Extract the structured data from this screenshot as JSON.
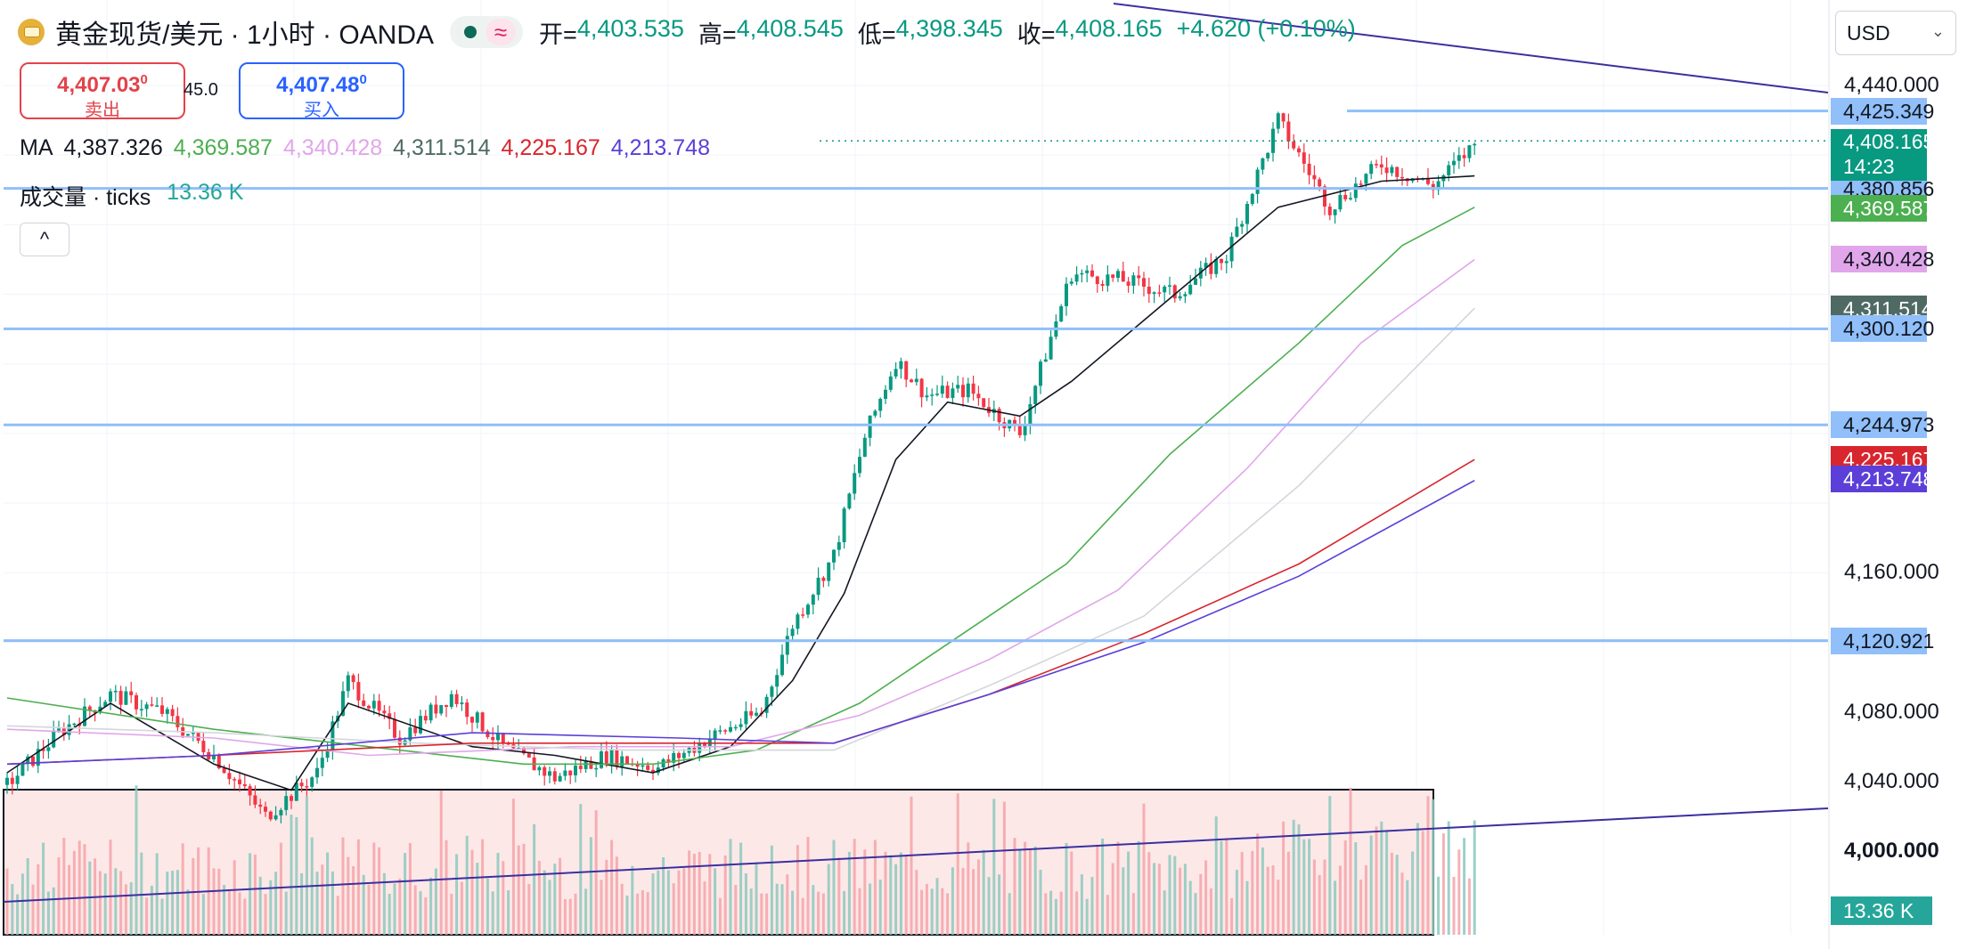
{
  "header": {
    "symbol_title": "黄金现货/美元 · 1小时 · OANDA",
    "status_icon": "market-status-dot",
    "wave_icon": "≈",
    "open_label": "开=",
    "open": "4,403.535",
    "high_label": "高=",
    "high": "4,408.545",
    "low_label": "低=",
    "low": "4,398.345",
    "close_label": "收=",
    "close": "4,408.165",
    "change": "+4.620 (+0.10%)"
  },
  "trade": {
    "sell_price": "4,407.03",
    "sell_sup": "0",
    "sell_label": "卖出",
    "spread": "45.0",
    "buy_price": "4,407.48",
    "buy_sup": "0",
    "buy_label": "买入"
  },
  "indicators": {
    "ma_label": "MA",
    "ma_values": [
      {
        "value": "4,387.326",
        "color": "#131722"
      },
      {
        "value": "4,369.587",
        "color": "#4caf50"
      },
      {
        "value": "4,340.428",
        "color": "#e1a6ea"
      },
      {
        "value": "4,311.514",
        "color": "#4f6a63"
      },
      {
        "value": "4,225.167",
        "color": "#d8262e"
      },
      {
        "value": "4,213.748",
        "color": "#5b3fd8"
      }
    ],
    "volume_label": "成交量 · ticks",
    "volume_value": "13.36 K",
    "collapse_icon": "^"
  },
  "currency": "USD",
  "colors": {
    "up": "#089981",
    "down": "#f23645",
    "hline": "#90bff9",
    "trendline": "#3b2fa0",
    "rect_fill": "#fde8e8"
  },
  "chart_data": {
    "type": "candlestick",
    "timeframe": "1小时",
    "ylim": [
      3980,
      4452
    ],
    "y_ticks": [
      "4,440.000",
      "4,160.000",
      "4,120.000",
      "4,080.000",
      "4,040.000",
      "4,000.000"
    ],
    "price_labels": [
      {
        "value": "4,425.349",
        "y": 4425.349,
        "style": "light"
      },
      {
        "value": "4,387.326",
        "y": 4387.326,
        "style": "dark",
        "color": "#000000"
      },
      {
        "value": "4,380.856",
        "y": 4380.856,
        "style": "light"
      },
      {
        "value": "4,369.587",
        "y": 4369.587,
        "style": "dark",
        "color": "#4caf50"
      },
      {
        "value": "4,340.428",
        "y": 4340.428,
        "style": "color",
        "color": "#e1a6ea"
      },
      {
        "value": "4,311.514",
        "y": 4311.514,
        "style": "dark",
        "color": "#4f6a63"
      },
      {
        "value": "4,300.120",
        "y": 4300.12,
        "style": "light"
      },
      {
        "value": "4,244.973",
        "y": 4244.973,
        "style": "light"
      },
      {
        "value": "4,225.167",
        "y": 4225.167,
        "style": "dark",
        "color": "#d8262e"
      },
      {
        "value": "4,213.748",
        "y": 4213.748,
        "style": "dark",
        "color": "#5b3fd8"
      },
      {
        "value": "4,120.921",
        "y": 4120.921,
        "style": "light"
      }
    ],
    "last_price": {
      "value": "4,408.165",
      "countdown": "14:23",
      "y": 4408.165
    },
    "volume_label": "13.36 K",
    "horizontal_lines": [
      4425.349,
      4380.856,
      4300.12,
      4244.973,
      4120.921
    ],
    "anchors": [
      [
        0,
        4038
      ],
      [
        10,
        4068
      ],
      [
        20,
        4090
      ],
      [
        30,
        4080
      ],
      [
        40,
        4055
      ],
      [
        50,
        4020
      ],
      [
        60,
        4045
      ],
      [
        66,
        4098
      ],
      [
        76,
        4065
      ],
      [
        86,
        4090
      ],
      [
        96,
        4060
      ],
      [
        106,
        4042
      ],
      [
        116,
        4055
      ],
      [
        126,
        4048
      ],
      [
        136,
        4065
      ],
      [
        146,
        4080
      ],
      [
        152,
        4130
      ],
      [
        160,
        4170
      ],
      [
        166,
        4238
      ],
      [
        172,
        4282
      ],
      [
        178,
        4262
      ],
      [
        186,
        4265
      ],
      [
        196,
        4240
      ],
      [
        206,
        4332
      ],
      [
        216,
        4328
      ],
      [
        226,
        4320
      ],
      [
        236,
        4342
      ],
      [
        246,
        4420
      ],
      [
        256,
        4370
      ],
      [
        266,
        4395
      ],
      [
        276,
        4382
      ],
      [
        284,
        4406
      ]
    ],
    "ma_series": [
      {
        "color": "#131722",
        "points": [
          [
            0,
            4045
          ],
          [
            20,
            4085
          ],
          [
            40,
            4050
          ],
          [
            55,
            4035
          ],
          [
            66,
            4085
          ],
          [
            90,
            4060
          ],
          [
            106,
            4055
          ],
          [
            125,
            4045
          ],
          [
            140,
            4060
          ],
          [
            152,
            4098
          ],
          [
            162,
            4148
          ],
          [
            172,
            4225
          ],
          [
            182,
            4258
          ],
          [
            196,
            4250
          ],
          [
            206,
            4270
          ],
          [
            226,
            4320
          ],
          [
            246,
            4370
          ],
          [
            266,
            4385
          ],
          [
            284,
            4388
          ]
        ]
      },
      {
        "color": "#4caf50",
        "points": [
          [
            0,
            4088
          ],
          [
            40,
            4070
          ],
          [
            70,
            4060
          ],
          [
            100,
            4050
          ],
          [
            125,
            4050
          ],
          [
            145,
            4058
          ],
          [
            165,
            4085
          ],
          [
            185,
            4125
          ],
          [
            205,
            4165
          ],
          [
            225,
            4228
          ],
          [
            250,
            4292
          ],
          [
            270,
            4348
          ],
          [
            284,
            4370
          ]
        ]
      },
      {
        "color": "#e1a6ea",
        "points": [
          [
            0,
            4070
          ],
          [
            40,
            4065
          ],
          [
            70,
            4055
          ],
          [
            110,
            4060
          ],
          [
            140,
            4060
          ],
          [
            165,
            4078
          ],
          [
            190,
            4110
          ],
          [
            215,
            4150
          ],
          [
            240,
            4220
          ],
          [
            262,
            4292
          ],
          [
            284,
            4340
          ]
        ]
      },
      {
        "color": "#d4d6db",
        "points": [
          [
            0,
            4072
          ],
          [
            40,
            4068
          ],
          [
            80,
            4062
          ],
          [
            120,
            4058
          ],
          [
            160,
            4058
          ],
          [
            190,
            4095
          ],
          [
            220,
            4135
          ],
          [
            250,
            4210
          ],
          [
            284,
            4312
          ]
        ]
      },
      {
        "color": "#d8262e",
        "points": [
          [
            0,
            4050
          ],
          [
            40,
            4055
          ],
          [
            90,
            4062
          ],
          [
            130,
            4062
          ],
          [
            160,
            4062
          ],
          [
            190,
            4090
          ],
          [
            220,
            4125
          ],
          [
            250,
            4165
          ],
          [
            284,
            4225
          ]
        ]
      },
      {
        "color": "#5b3fd8",
        "points": [
          [
            0,
            4050
          ],
          [
            40,
            4055
          ],
          [
            90,
            4068
          ],
          [
            130,
            4065
          ],
          [
            160,
            4062
          ],
          [
            190,
            4090
          ],
          [
            220,
            4120
          ],
          [
            250,
            4158
          ],
          [
            284,
            4213
          ]
        ]
      }
    ]
  }
}
